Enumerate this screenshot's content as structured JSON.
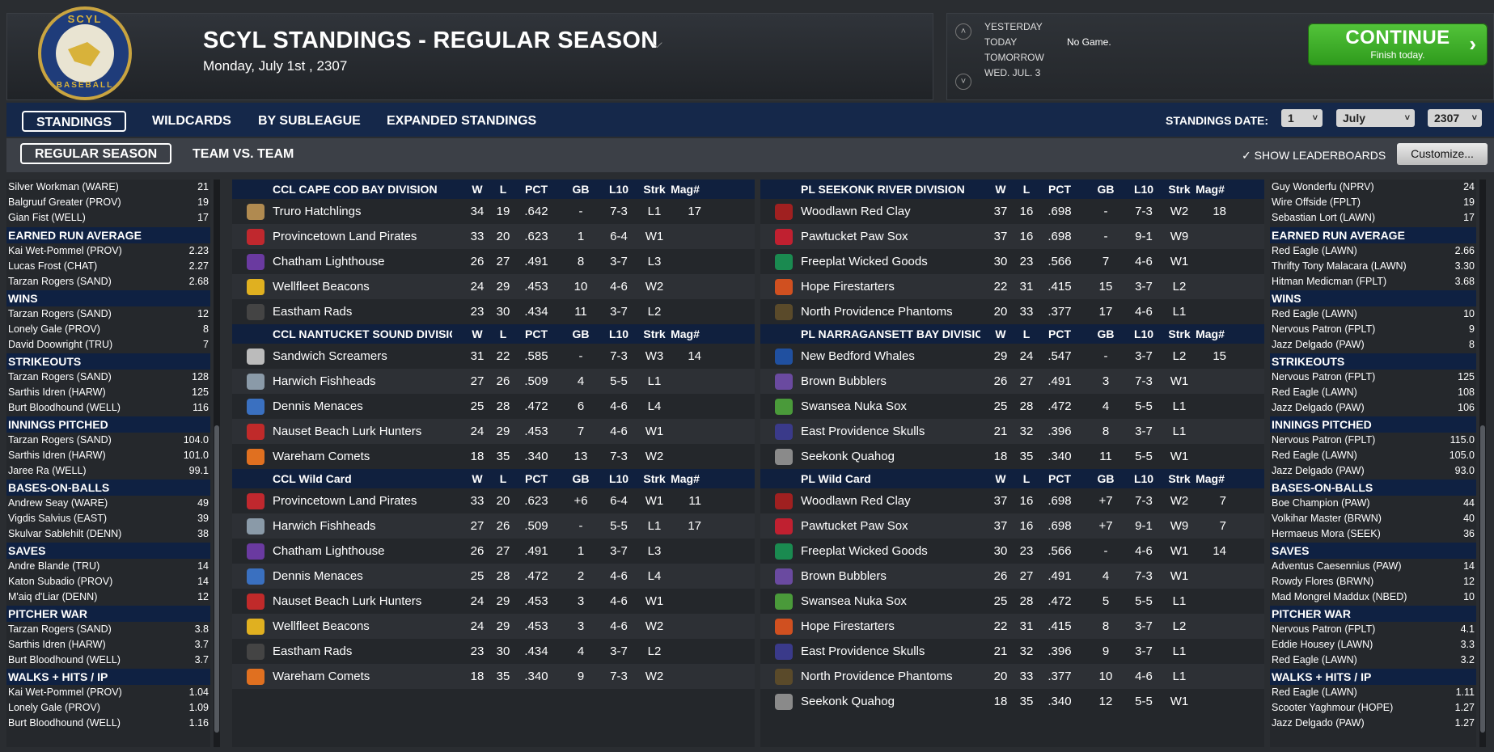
{
  "header": {
    "logo_top": "SCYL",
    "logo_bottom": "BASEBALL",
    "title": "SCYL STANDINGS - REGULAR SEASON",
    "date": "Monday, July 1st , 2307"
  },
  "days": {
    "yesterday": "YESTERDAY",
    "today": "TODAY",
    "tomorrow": "TOMORROW",
    "wed": "WED. JUL. 3",
    "today_note": "No Game."
  },
  "continue": {
    "label": "CONTINUE",
    "sub": "Finish today."
  },
  "nav": {
    "tabs": [
      "STANDINGS",
      "WILDCARDS",
      "BY SUBLEAGUE",
      "EXPANDED STANDINGS"
    ],
    "subtabs": [
      "REGULAR SEASON",
      "TEAM VS. TEAM"
    ],
    "standings_date_label": "STANDINGS DATE:",
    "day": "1",
    "month": "July",
    "year": "2307",
    "show_leaderboards": "SHOW LEADERBOARDS",
    "customize": "Customize..."
  },
  "left_leaders": {
    "top_rows": [
      [
        "Silver Workman (WARE)",
        "21"
      ],
      [
        "Balgruuf Greater (PROV)",
        "19"
      ],
      [
        "Gian Fist (WELL)",
        "17"
      ]
    ],
    "groups": [
      {
        "title": "EARNED RUN AVERAGE",
        "rows": [
          [
            "Kai Wet-Pommel (PROV)",
            "2.23"
          ],
          [
            "Lucas Frost (CHAT)",
            "2.27"
          ],
          [
            "Tarzan Rogers (SAND)",
            "2.68"
          ]
        ]
      },
      {
        "title": "WINS",
        "rows": [
          [
            "Tarzan Rogers (SAND)",
            "12"
          ],
          [
            "Lonely Gale (PROV)",
            "8"
          ],
          [
            "David Doowright (TRU)",
            "7"
          ]
        ]
      },
      {
        "title": "STRIKEOUTS",
        "rows": [
          [
            "Tarzan Rogers (SAND)",
            "128"
          ],
          [
            "Sarthis Idren (HARW)",
            "125"
          ],
          [
            "Burt Bloodhound (WELL)",
            "116"
          ]
        ]
      },
      {
        "title": "INNINGS PITCHED",
        "rows": [
          [
            "Tarzan Rogers (SAND)",
            "104.0"
          ],
          [
            "Sarthis Idren (HARW)",
            "101.0"
          ],
          [
            "Jaree Ra (WELL)",
            "99.1"
          ]
        ]
      },
      {
        "title": "BASES-ON-BALLS",
        "rows": [
          [
            "Andrew Seay (WARE)",
            "49"
          ],
          [
            "Vigdis Salvius (EAST)",
            "39"
          ],
          [
            "Skulvar Sablehilt (DENN)",
            "38"
          ]
        ]
      },
      {
        "title": "SAVES",
        "rows": [
          [
            "Andre Blande (TRU)",
            "14"
          ],
          [
            "Katon Subadio (PROV)",
            "14"
          ],
          [
            "M'aiq d'Liar (DENN)",
            "12"
          ]
        ]
      },
      {
        "title": "PITCHER WAR",
        "rows": [
          [
            "Tarzan Rogers (SAND)",
            "3.8"
          ],
          [
            "Sarthis Idren (HARW)",
            "3.7"
          ],
          [
            "Burt Bloodhound (WELL)",
            "3.7"
          ]
        ]
      },
      {
        "title": "WALKS + HITS / IP",
        "rows": [
          [
            "Kai Wet-Pommel (PROV)",
            "1.04"
          ],
          [
            "Lonely Gale (PROV)",
            "1.09"
          ],
          [
            "Burt Bloodhound (WELL)",
            "1.16"
          ]
        ]
      }
    ]
  },
  "right_leaders": {
    "top_rows": [
      [
        "Guy Wonderfu (NPRV)",
        "24"
      ],
      [
        "Wire Offside (FPLT)",
        "19"
      ],
      [
        "Sebastian Lort (LAWN)",
        "17"
      ]
    ],
    "groups": [
      {
        "title": "EARNED RUN AVERAGE",
        "rows": [
          [
            "Red Eagle (LAWN)",
            "2.66"
          ],
          [
            "Thrifty Tony Malacara (LAWN)",
            "3.30"
          ],
          [
            "Hitman Medicman (FPLT)",
            "3.68"
          ]
        ]
      },
      {
        "title": "WINS",
        "rows": [
          [
            "Red Eagle (LAWN)",
            "10"
          ],
          [
            "Nervous Patron (FPLT)",
            "9"
          ],
          [
            "Jazz Delgado (PAW)",
            "8"
          ]
        ]
      },
      {
        "title": "STRIKEOUTS",
        "rows": [
          [
            "Nervous Patron (FPLT)",
            "125"
          ],
          [
            "Red Eagle (LAWN)",
            "108"
          ],
          [
            "Jazz Delgado (PAW)",
            "106"
          ]
        ]
      },
      {
        "title": "INNINGS PITCHED",
        "rows": [
          [
            "Nervous Patron (FPLT)",
            "115.0"
          ],
          [
            "Red Eagle (LAWN)",
            "105.0"
          ],
          [
            "Jazz Delgado (PAW)",
            "93.0"
          ]
        ]
      },
      {
        "title": "BASES-ON-BALLS",
        "rows": [
          [
            "Boe Champion (PAW)",
            "44"
          ],
          [
            "Volkihar Master (BRWN)",
            "40"
          ],
          [
            "Hermaeus Mora (SEEK)",
            "36"
          ]
        ]
      },
      {
        "title": "SAVES",
        "rows": [
          [
            "Adventus Caesennius (PAW)",
            "14"
          ],
          [
            "Rowdy Flores (BRWN)",
            "12"
          ],
          [
            "Mad Mongrel Maddux (NBED)",
            "10"
          ]
        ]
      },
      {
        "title": "PITCHER WAR",
        "rows": [
          [
            "Nervous Patron (FPLT)",
            "4.1"
          ],
          [
            "Eddie Housey (LAWN)",
            "3.3"
          ],
          [
            "Red Eagle (LAWN)",
            "3.2"
          ]
        ]
      },
      {
        "title": "WALKS + HITS / IP",
        "rows": [
          [
            "Red Eagle (LAWN)",
            "1.11"
          ],
          [
            "Scooter Yaghmour (HOPE)",
            "1.27"
          ],
          [
            "Jazz Delgado (PAW)",
            "1.27"
          ]
        ]
      }
    ]
  },
  "columns": [
    "W",
    "L",
    "PCT",
    "GB",
    "L10",
    "Strk",
    "Mag#"
  ],
  "left_tables": [
    {
      "title": "CCL CAPE COD BAY DIVISION",
      "rows": [
        {
          "team": "Truro Hatchlings",
          "icon_color": "#b08a50",
          "vals": [
            "34",
            "19",
            ".642",
            "-",
            "7-3",
            "L1",
            "17"
          ]
        },
        {
          "team": "Provincetown Land Pirates",
          "icon_color": "#c0282e",
          "vals": [
            "33",
            "20",
            ".623",
            "1",
            "6-4",
            "W1",
            ""
          ]
        },
        {
          "team": "Chatham Lighthouse",
          "icon_color": "#6a3aa0",
          "vals": [
            "26",
            "27",
            ".491",
            "8",
            "3-7",
            "L3",
            ""
          ]
        },
        {
          "team": "Wellfleet Beacons",
          "icon_color": "#e0b020",
          "vals": [
            "24",
            "29",
            ".453",
            "10",
            "4-6",
            "W2",
            ""
          ]
        },
        {
          "team": "Eastham Rads",
          "icon_color": "#444444",
          "vals": [
            "23",
            "30",
            ".434",
            "11",
            "3-7",
            "L2",
            ""
          ]
        }
      ]
    },
    {
      "title": "CCL NANTUCKET SOUND DIVISIC",
      "rows": [
        {
          "team": "Sandwich Screamers",
          "icon_color": "#bbbbbb",
          "vals": [
            "31",
            "22",
            ".585",
            "-",
            "7-3",
            "W3",
            "14"
          ]
        },
        {
          "team": "Harwich Fishheads",
          "icon_color": "#8a9aa8",
          "vals": [
            "27",
            "26",
            ".509",
            "4",
            "5-5",
            "L1",
            ""
          ]
        },
        {
          "team": "Dennis Menaces",
          "icon_color": "#3a70c0",
          "vals": [
            "25",
            "28",
            ".472",
            "6",
            "4-6",
            "L4",
            ""
          ]
        },
        {
          "team": "Nauset Beach Lurk Hunters",
          "icon_color": "#c02a2a",
          "vals": [
            "24",
            "29",
            ".453",
            "7",
            "4-6",
            "W1",
            ""
          ]
        },
        {
          "team": "Wareham Comets",
          "icon_color": "#e07020",
          "vals": [
            "18",
            "35",
            ".340",
            "13",
            "7-3",
            "W2",
            ""
          ]
        }
      ]
    },
    {
      "title": "CCL  Wild Card",
      "rows": [
        {
          "team": "Provincetown Land Pirates",
          "icon_color": "#c0282e",
          "vals": [
            "33",
            "20",
            ".623",
            "+6",
            "6-4",
            "W1",
            "11"
          ]
        },
        {
          "team": "Harwich Fishheads",
          "icon_color": "#8a9aa8",
          "vals": [
            "27",
            "26",
            ".509",
            "-",
            "5-5",
            "L1",
            "17"
          ]
        },
        {
          "team": "Chatham Lighthouse",
          "icon_color": "#6a3aa0",
          "vals": [
            "26",
            "27",
            ".491",
            "1",
            "3-7",
            "L3",
            ""
          ]
        },
        {
          "team": "Dennis Menaces",
          "icon_color": "#3a70c0",
          "vals": [
            "25",
            "28",
            ".472",
            "2",
            "4-6",
            "L4",
            ""
          ]
        },
        {
          "team": "Nauset Beach Lurk Hunters",
          "icon_color": "#c02a2a",
          "vals": [
            "24",
            "29",
            ".453",
            "3",
            "4-6",
            "W1",
            ""
          ]
        },
        {
          "team": "Wellfleet Beacons",
          "icon_color": "#e0b020",
          "vals": [
            "24",
            "29",
            ".453",
            "3",
            "4-6",
            "W2",
            ""
          ]
        },
        {
          "team": "Eastham Rads",
          "icon_color": "#444444",
          "vals": [
            "23",
            "30",
            ".434",
            "4",
            "3-7",
            "L2",
            ""
          ]
        },
        {
          "team": "Wareham Comets",
          "icon_color": "#e07020",
          "vals": [
            "18",
            "35",
            ".340",
            "9",
            "7-3",
            "W2",
            ""
          ]
        }
      ]
    }
  ],
  "right_tables": [
    {
      "title": "PL SEEKONK RIVER DIVISION",
      "rows": [
        {
          "team": "Woodlawn Red Clay",
          "icon_color": "#a02020",
          "vals": [
            "37",
            "16",
            ".698",
            "-",
            "7-3",
            "W2",
            "18"
          ]
        },
        {
          "team": "Pawtucket Paw Sox",
          "icon_color": "#c02030",
          "vals": [
            "37",
            "16",
            ".698",
            "-",
            "9-1",
            "W9",
            ""
          ]
        },
        {
          "team": "Freeplat Wicked Goods",
          "icon_color": "#1a8a50",
          "vals": [
            "30",
            "23",
            ".566",
            "7",
            "4-6",
            "W1",
            ""
          ]
        },
        {
          "team": "Hope Firestarters",
          "icon_color": "#d05020",
          "vals": [
            "22",
            "31",
            ".415",
            "15",
            "3-7",
            "L2",
            ""
          ]
        },
        {
          "team": "North Providence Phantoms",
          "icon_color": "#5a4a2a",
          "vals": [
            "20",
            "33",
            ".377",
            "17",
            "4-6",
            "L1",
            ""
          ]
        }
      ]
    },
    {
      "title": "PL NARRAGANSETT BAY DIVISIC",
      "rows": [
        {
          "team": "New Bedford Whales",
          "icon_color": "#2050a0",
          "vals": [
            "29",
            "24",
            ".547",
            "-",
            "3-7",
            "L2",
            "15"
          ]
        },
        {
          "team": "Brown Bubblers",
          "icon_color": "#6a4aa0",
          "vals": [
            "26",
            "27",
            ".491",
            "3",
            "7-3",
            "W1",
            ""
          ]
        },
        {
          "team": "Swansea Nuka Sox",
          "icon_color": "#4a9a3a",
          "vals": [
            "25",
            "28",
            ".472",
            "4",
            "5-5",
            "L1",
            ""
          ]
        },
        {
          "team": "East Providence Skulls",
          "icon_color": "#3a3a8a",
          "vals": [
            "21",
            "32",
            ".396",
            "8",
            "3-7",
            "L1",
            ""
          ]
        },
        {
          "team": "Seekonk Quahog",
          "icon_color": "#8a8a8a",
          "vals": [
            "18",
            "35",
            ".340",
            "11",
            "5-5",
            "W1",
            ""
          ]
        }
      ]
    },
    {
      "title": "PL  Wild Card",
      "rows": [
        {
          "team": "Woodlawn Red Clay",
          "icon_color": "#a02020",
          "vals": [
            "37",
            "16",
            ".698",
            "+7",
            "7-3",
            "W2",
            "7"
          ]
        },
        {
          "team": "Pawtucket Paw Sox",
          "icon_color": "#c02030",
          "vals": [
            "37",
            "16",
            ".698",
            "+7",
            "9-1",
            "W9",
            "7"
          ]
        },
        {
          "team": "Freeplat Wicked Goods",
          "icon_color": "#1a8a50",
          "vals": [
            "30",
            "23",
            ".566",
            "-",
            "4-6",
            "W1",
            "14"
          ]
        },
        {
          "team": "Brown Bubblers",
          "icon_color": "#6a4aa0",
          "vals": [
            "26",
            "27",
            ".491",
            "4",
            "7-3",
            "W1",
            ""
          ]
        },
        {
          "team": "Swansea Nuka Sox",
          "icon_color": "#4a9a3a",
          "vals": [
            "25",
            "28",
            ".472",
            "5",
            "5-5",
            "L1",
            ""
          ]
        },
        {
          "team": "Hope Firestarters",
          "icon_color": "#d05020",
          "vals": [
            "22",
            "31",
            ".415",
            "8",
            "3-7",
            "L2",
            ""
          ]
        },
        {
          "team": "East Providence Skulls",
          "icon_color": "#3a3a8a",
          "vals": [
            "21",
            "32",
            ".396",
            "9",
            "3-7",
            "L1",
            ""
          ]
        },
        {
          "team": "North Providence Phantoms",
          "icon_color": "#5a4a2a",
          "vals": [
            "20",
            "33",
            ".377",
            "10",
            "4-6",
            "L1",
            ""
          ]
        },
        {
          "team": "Seekonk Quahog",
          "icon_color": "#8a8a8a",
          "vals": [
            "18",
            "35",
            ".340",
            "12",
            "5-5",
            "W1",
            ""
          ]
        }
      ]
    }
  ]
}
